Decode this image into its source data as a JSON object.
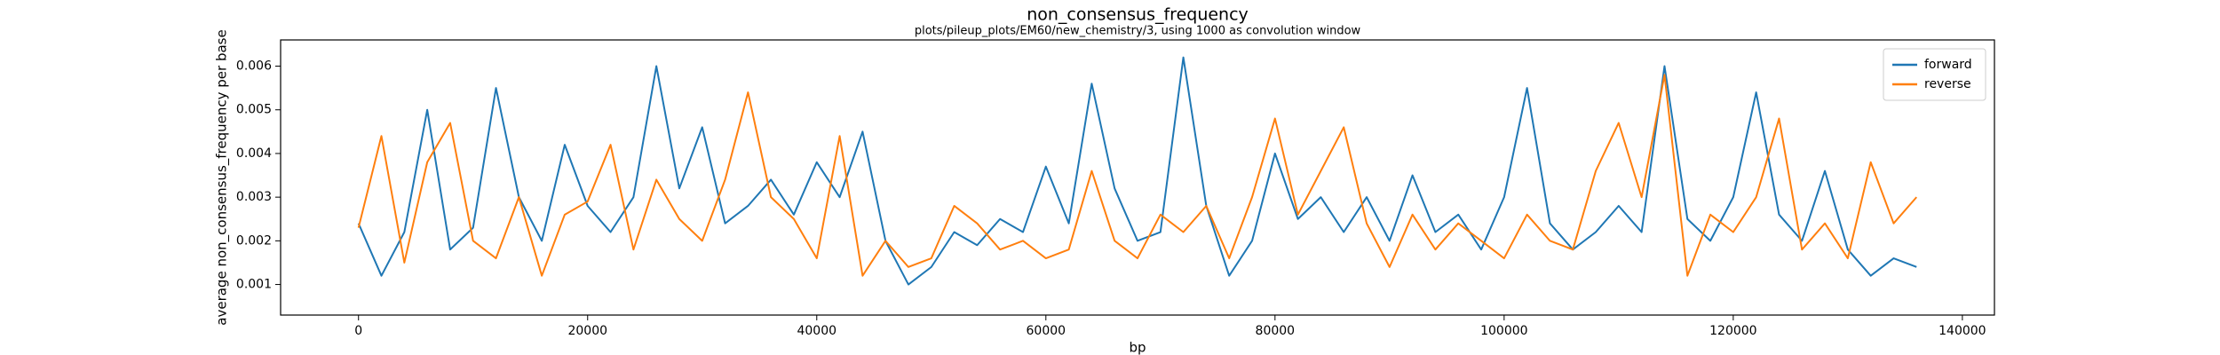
{
  "chart_data": {
    "type": "line",
    "title": "non_consensus_frequency",
    "subtitle": "plots/pileup_plots/EM60/new_chemistry/3, using 1000 as convolution window",
    "x_label": "bp",
    "y_label": "average non_consensus_frequency per base",
    "x": [
      0,
      2000,
      4000,
      6000,
      8000,
      10000,
      12000,
      14000,
      16000,
      18000,
      20000,
      22000,
      24000,
      26000,
      28000,
      30000,
      32000,
      34000,
      36000,
      38000,
      40000,
      42000,
      44000,
      46000,
      48000,
      50000,
      52000,
      54000,
      56000,
      58000,
      60000,
      62000,
      64000,
      66000,
      68000,
      70000,
      72000,
      74000,
      76000,
      78000,
      80000,
      82000,
      84000,
      86000,
      88000,
      90000,
      92000,
      94000,
      96000,
      98000,
      100000,
      102000,
      104000,
      106000,
      108000,
      110000,
      112000,
      114000,
      116000,
      118000,
      120000,
      122000,
      124000,
      126000,
      128000,
      130000,
      132000,
      134000,
      136000
    ],
    "series": [
      {
        "name": "forward",
        "color": "#1f77b4",
        "values": [
          0.0024,
          0.0012,
          0.0022,
          0.005,
          0.0018,
          0.0023,
          0.0055,
          0.003,
          0.002,
          0.0042,
          0.0028,
          0.0022,
          0.003,
          0.006,
          0.0032,
          0.0046,
          0.0024,
          0.0028,
          0.0034,
          0.0026,
          0.0038,
          0.003,
          0.0045,
          0.002,
          0.001,
          0.0014,
          0.0022,
          0.0019,
          0.0025,
          0.0022,
          0.0037,
          0.0024,
          0.0056,
          0.0032,
          0.002,
          0.0022,
          0.0062,
          0.0028,
          0.0012,
          0.002,
          0.004,
          0.0025,
          0.003,
          0.0022,
          0.003,
          0.002,
          0.0035,
          0.0022,
          0.0026,
          0.0018,
          0.003,
          0.0055,
          0.0024,
          0.0018,
          0.0022,
          0.0028,
          0.0022,
          0.006,
          0.0025,
          0.002,
          0.003,
          0.0054,
          0.0026,
          0.002,
          0.0036,
          0.0018,
          0.0012,
          0.0016,
          0.0014
        ]
      },
      {
        "name": "reverse",
        "color": "#ff7f0e",
        "values": [
          0.0023,
          0.0044,
          0.0015,
          0.0038,
          0.0047,
          0.002,
          0.0016,
          0.003,
          0.0012,
          0.0026,
          0.0029,
          0.0042,
          0.0018,
          0.0034,
          0.0025,
          0.002,
          0.0034,
          0.0054,
          0.003,
          0.0025,
          0.0016,
          0.0044,
          0.0012,
          0.002,
          0.0014,
          0.0016,
          0.0028,
          0.0024,
          0.0018,
          0.002,
          0.0016,
          0.0018,
          0.0036,
          0.002,
          0.0016,
          0.0026,
          0.0022,
          0.0028,
          0.0016,
          0.003,
          0.0048,
          0.0026,
          0.0036,
          0.0046,
          0.0024,
          0.0014,
          0.0026,
          0.0018,
          0.0024,
          0.002,
          0.0016,
          0.0026,
          0.002,
          0.0018,
          0.0036,
          0.0047,
          0.003,
          0.0058,
          0.0012,
          0.0026,
          0.0022,
          0.003,
          0.0048,
          0.0018,
          0.0024,
          0.0016,
          0.0038,
          0.0024,
          0.003
        ]
      }
    ],
    "xlim": [
      -6800,
      142800
    ],
    "ylim": [
      0.0003,
      0.0066
    ],
    "xticks": [
      0,
      20000,
      40000,
      60000,
      80000,
      100000,
      120000,
      140000
    ],
    "yticks": [
      0.001,
      0.002,
      0.003,
      0.004,
      0.005,
      0.006
    ],
    "legend": "upper right"
  }
}
